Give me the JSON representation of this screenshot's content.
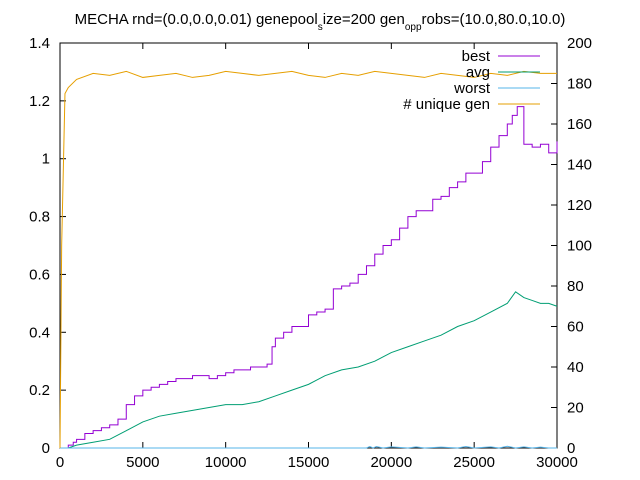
{
  "chart_data": {
    "type": "line",
    "title": "MECHA rnd=(0.0,0.0,0.01) genepool",
    "title_sub1": "s",
    "title_mid1": "ize=200 gen",
    "title_sub2": "o",
    "title_mid2": "p",
    "title_sub3": "p",
    "title_end": "robs=(10.0,80.0,10.0)",
    "x_range": [
      0,
      30000
    ],
    "y_range": [
      0,
      1.4
    ],
    "y2_range": [
      0,
      200
    ],
    "x_ticks": [
      "0",
      "5000",
      "10000",
      "15000",
      "20000",
      "25000",
      "30000"
    ],
    "y_ticks": [
      "0",
      "0.2",
      "0.4",
      "0.6",
      "0.8",
      "1",
      "1.2",
      "1.4"
    ],
    "y2_ticks": [
      "0",
      "20",
      "40",
      "60",
      "80",
      "100",
      "120",
      "140",
      "160",
      "180",
      "200"
    ],
    "grid": false,
    "legend_position": "top-right",
    "series": [
      {
        "name": "best",
        "axis": "y",
        "color": "#9400d3",
        "x": [
          0,
          200,
          500,
          800,
          1000,
          1500,
          2000,
          2500,
          3000,
          3500,
          4000,
          4500,
          5000,
          5500,
          6000,
          6500,
          7000,
          7500,
          8000,
          8500,
          9000,
          9500,
          10000,
          10500,
          11000,
          11500,
          12000,
          12500,
          12800,
          13000,
          13500,
          14000,
          14500,
          15000,
          15500,
          16000,
          16500,
          17000,
          17500,
          18000,
          18500,
          19000,
          19500,
          20000,
          20500,
          21000,
          21500,
          22000,
          22500,
          23000,
          23500,
          24000,
          24500,
          25000,
          25500,
          26000,
          26500,
          27000,
          27300,
          27600,
          28000,
          28500,
          29000,
          29500,
          30000
        ],
        "values": [
          0.0,
          0.0,
          0.01,
          0.02,
          0.03,
          0.05,
          0.06,
          0.07,
          0.08,
          0.1,
          0.15,
          0.18,
          0.2,
          0.21,
          0.22,
          0.23,
          0.24,
          0.24,
          0.25,
          0.25,
          0.24,
          0.25,
          0.26,
          0.27,
          0.27,
          0.28,
          0.28,
          0.29,
          0.35,
          0.38,
          0.4,
          0.42,
          0.42,
          0.46,
          0.47,
          0.48,
          0.55,
          0.56,
          0.57,
          0.6,
          0.63,
          0.67,
          0.7,
          0.72,
          0.76,
          0.8,
          0.82,
          0.82,
          0.86,
          0.87,
          0.9,
          0.92,
          0.95,
          0.95,
          0.99,
          1.04,
          1.08,
          1.12,
          1.15,
          1.18,
          1.05,
          1.04,
          1.05,
          1.02,
          1.06
        ]
      },
      {
        "name": "avg",
        "axis": "y",
        "color": "#009e73",
        "x": [
          0,
          500,
          1000,
          2000,
          3000,
          4000,
          5000,
          6000,
          7000,
          8000,
          9000,
          10000,
          11000,
          12000,
          13000,
          14000,
          15000,
          16000,
          17000,
          18000,
          19000,
          20000,
          21000,
          22000,
          23000,
          24000,
          25000,
          26000,
          27000,
          27500,
          28000,
          28500,
          29000,
          29500,
          30000
        ],
        "values": [
          0.0,
          0.0,
          0.01,
          0.02,
          0.03,
          0.06,
          0.09,
          0.11,
          0.12,
          0.13,
          0.14,
          0.15,
          0.15,
          0.16,
          0.18,
          0.2,
          0.22,
          0.25,
          0.27,
          0.28,
          0.3,
          0.33,
          0.35,
          0.37,
          0.39,
          0.42,
          0.44,
          0.47,
          0.5,
          0.54,
          0.52,
          0.51,
          0.5,
          0.5,
          0.49
        ]
      },
      {
        "name": "worst",
        "axis": "y",
        "color": "#56b4e9",
        "x": [
          0,
          18500,
          18700,
          18900,
          19100,
          19500,
          20000,
          21000,
          21500,
          22000,
          23000,
          24000,
          24500,
          25000,
          26000,
          26500,
          27000,
          27500,
          28000,
          28500,
          29000,
          29500,
          30000
        ],
        "values": [
          0.0,
          0.0,
          0.005,
          0.0,
          0.005,
          0.0,
          0.004,
          0.0,
          0.004,
          0.0,
          0.003,
          0.0,
          0.005,
          0.0,
          0.004,
          0.0,
          0.006,
          0.0,
          0.004,
          0.0,
          0.003,
          0.0,
          0.0
        ]
      },
      {
        "name": "# unique gen",
        "axis": "y2",
        "color": "#e69f00",
        "x": [
          0,
          100,
          300,
          500,
          1000,
          2000,
          3000,
          4000,
          5000,
          6000,
          7000,
          8000,
          9000,
          10000,
          11000,
          12000,
          13000,
          14000,
          15000,
          16000,
          17000,
          18000,
          19000,
          20000,
          21000,
          22000,
          23000,
          24000,
          25000,
          26000,
          27000,
          28000,
          29000,
          30000
        ],
        "values": [
          0,
          100,
          175,
          178,
          182,
          185,
          184,
          186,
          183,
          184,
          185,
          183,
          184,
          186,
          185,
          184,
          185,
          186,
          184,
          183,
          185,
          184,
          186,
          185,
          184,
          183,
          185,
          184,
          183,
          185,
          184,
          186,
          185,
          185
        ]
      }
    ]
  }
}
